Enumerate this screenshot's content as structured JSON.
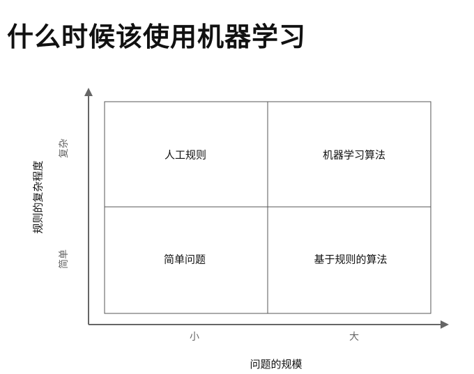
{
  "title": "什么时候该使用机器学习",
  "axes": {
    "y_title": "规则的复杂程度",
    "x_title": "问题的规模",
    "y_ticks": {
      "top": "复杂",
      "bottom": "简单"
    },
    "x_ticks": {
      "left": "小",
      "right": "大"
    },
    "axis_color": "#666666",
    "grid_color": "#555555"
  },
  "quadrants": {
    "top_left": "人工规则",
    "top_right": "机器学习算法",
    "bottom_left": "简单问题",
    "bottom_right": "基于规则的算法"
  }
}
